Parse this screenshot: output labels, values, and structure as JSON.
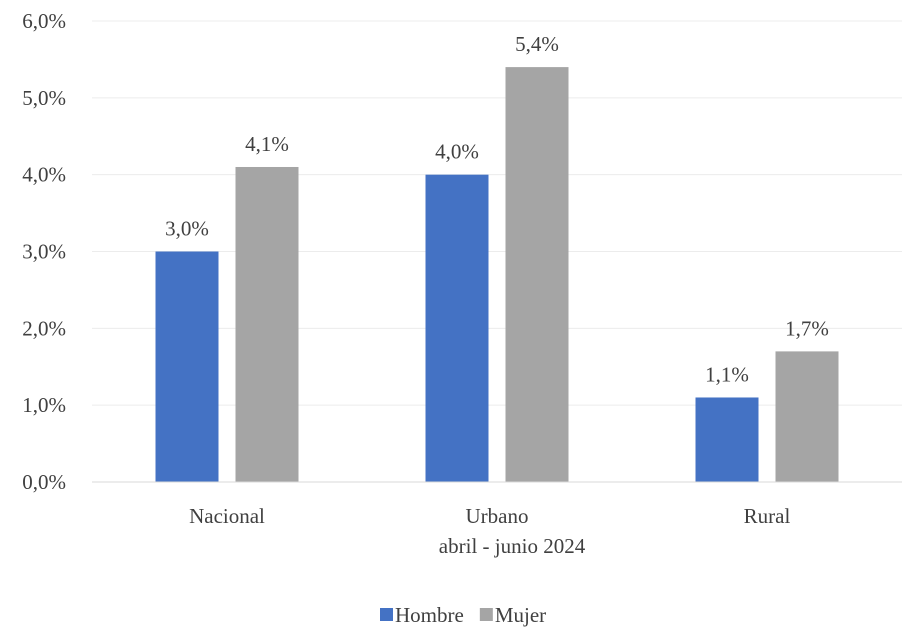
{
  "chart_data": {
    "type": "bar",
    "categories": [
      "Nacional",
      "Urbano",
      "Rural"
    ],
    "xlabel": "abril - junio 2024",
    "y_ticks": [
      "0,0%",
      "1,0%",
      "2,0%",
      "3,0%",
      "4,0%",
      "5,0%",
      "6,0%"
    ],
    "ylim": [
      0,
      6
    ],
    "grid": true,
    "legend_position": "bottom",
    "series": [
      {
        "name": "Hombre",
        "color": "#4472C4",
        "values": [
          3.0,
          4.0,
          1.1
        ],
        "labels": [
          "3,0%",
          "4,0%",
          "1,1%"
        ]
      },
      {
        "name": "Mujer",
        "color": "#A5A5A5",
        "values": [
          4.1,
          5.4,
          1.7
        ],
        "labels": [
          "4,1%",
          "5,4%",
          "1,7%"
        ]
      }
    ]
  }
}
